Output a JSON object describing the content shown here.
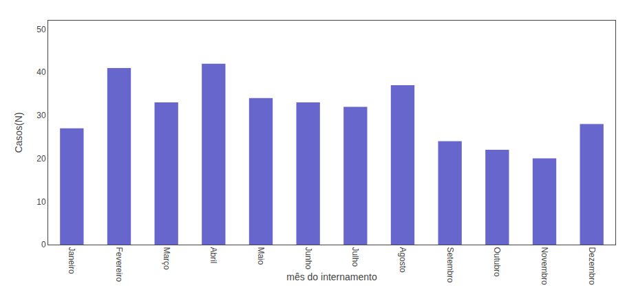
{
  "chart_data": {
    "type": "bar",
    "categories": [
      "Janeiro",
      "Fevereiro",
      "Março",
      "Abril",
      "Maio",
      "Junho",
      "Julho",
      "Agosto",
      "Setembro",
      "Outubro",
      "Novembro",
      "Dezembro"
    ],
    "values": [
      27,
      41,
      33,
      42,
      34,
      33,
      32,
      37,
      24,
      22,
      20,
      28
    ],
    "color": "#6666cc",
    "xlabel": "mês do internamento",
    "ylabel": "Casos(N)",
    "ylim": [
      0,
      52
    ],
    "yticks": [
      0,
      10,
      20,
      30,
      40,
      50
    ],
    "grid": false
  }
}
